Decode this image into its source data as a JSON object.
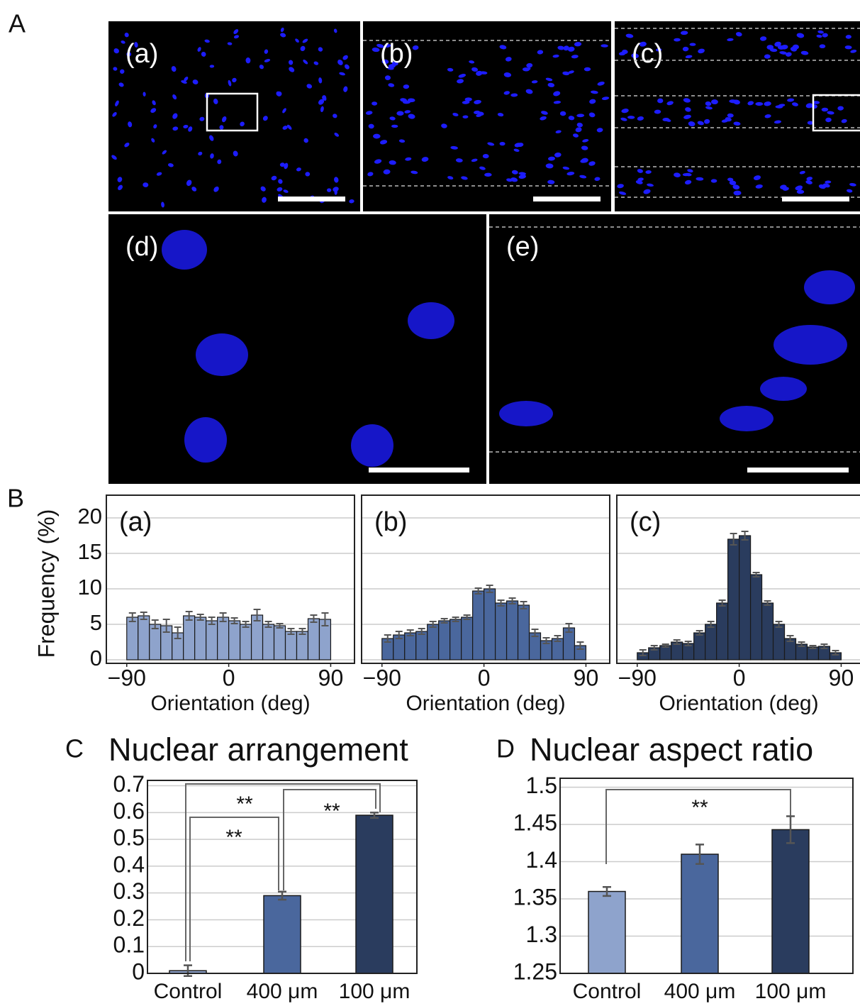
{
  "panel_labels": [
    "A",
    "B",
    "C",
    "D"
  ],
  "image_labels": [
    "(a)",
    "(b)",
    "(c)",
    "(d)",
    "(e)"
  ],
  "chart_data": [
    {
      "type": "histogram",
      "label": "(a)",
      "ylabel": "Frequency (%)",
      "xlabel": "Orientation (deg)",
      "color": "#8ea3cc",
      "bins": [
        -90,
        -80,
        -70,
        -60,
        -50,
        -40,
        -30,
        -20,
        -10,
        0,
        10,
        20,
        30,
        40,
        50,
        60,
        70,
        80,
        90
      ],
      "values": [
        6.0,
        6.2,
        5.0,
        4.8,
        3.8,
        6.2,
        6.0,
        5.5,
        6.0,
        5.5,
        5.0,
        6.3,
        5.0,
        4.8,
        4.0,
        4.0,
        5.8,
        5.7
      ],
      "errors": [
        0.6,
        0.5,
        0.6,
        0.9,
        0.8,
        0.6,
        0.4,
        0.5,
        0.6,
        0.4,
        0.4,
        0.8,
        0.4,
        0.3,
        0.4,
        0.4,
        0.5,
        0.9
      ],
      "xlim": [
        -108,
        111
      ],
      "ylim": [
        -0.5,
        23.2
      ],
      "xticks": [
        {
          "value": -90,
          "label": "−90"
        },
        0,
        90
      ],
      "yticks": [
        0,
        5,
        10,
        15,
        20
      ],
      "show_ytick_labels": true,
      "grid": true
    },
    {
      "type": "histogram",
      "label": "(b)",
      "xlabel": "Orientation (deg)",
      "color": "#4a679d",
      "bins": [
        -90,
        -80,
        -70,
        -60,
        -50,
        -40,
        -30,
        -20,
        -10,
        0,
        10,
        20,
        30,
        40,
        50,
        60,
        70,
        80,
        90
      ],
      "values": [
        3.0,
        3.5,
        3.8,
        4.0,
        5.0,
        5.5,
        5.7,
        6.0,
        9.7,
        10.0,
        8.0,
        8.3,
        7.7,
        3.8,
        2.7,
        3.0,
        4.5,
        2.0
      ],
      "errors": [
        0.5,
        0.5,
        0.4,
        0.4,
        0.4,
        0.3,
        0.3,
        0.3,
        0.4,
        0.5,
        0.4,
        0.4,
        0.5,
        0.5,
        0.4,
        0.4,
        0.6,
        0.5
      ],
      "xlim": [
        -108,
        111
      ],
      "ylim": [
        -0.5,
        23.2
      ],
      "xticks": [
        {
          "value": -90,
          "label": "−90"
        },
        0,
        90
      ],
      "yticks": [
        0,
        5,
        10,
        15,
        20
      ],
      "show_ytick_labels": false,
      "grid": true
    },
    {
      "type": "histogram",
      "label": "(c)",
      "xlabel": "Orientation (deg)",
      "color": "#2a3c5e",
      "bins": [
        -90,
        -80,
        -70,
        -60,
        -50,
        -40,
        -30,
        -20,
        -10,
        0,
        10,
        20,
        30,
        40,
        50,
        60,
        70,
        80,
        90
      ],
      "values": [
        1.0,
        1.7,
        2.0,
        2.5,
        2.3,
        3.8,
        5.0,
        8.0,
        17.0,
        17.5,
        12.0,
        8.0,
        5.0,
        3.0,
        2.2,
        1.8,
        1.9,
        1.0
      ],
      "errors": [
        0.4,
        0.3,
        0.2,
        0.3,
        0.3,
        0.3,
        0.4,
        0.4,
        0.8,
        0.6,
        0.3,
        0.3,
        0.4,
        0.4,
        0.3,
        0.2,
        0.3,
        0.3
      ],
      "xlim": [
        -108,
        111
      ],
      "ylim": [
        -0.5,
        23.2
      ],
      "xticks": [
        {
          "value": -90,
          "label": "−90"
        },
        0,
        90
      ],
      "yticks": [
        0,
        5,
        10,
        15,
        20
      ],
      "show_ytick_labels": false,
      "grid": true
    },
    {
      "type": "bar",
      "title": "Nuclear arrangement",
      "categories": [
        "Control",
        "400 μm",
        "100 μm"
      ],
      "values": [
        0.01,
        0.29,
        0.59
      ],
      "errors": [
        0.02,
        0.015,
        0.01
      ],
      "colors": [
        "#8ea3cc",
        "#4a679d",
        "#2a3c5e"
      ],
      "ylim": [
        0,
        0.72
      ],
      "yticks": [
        0,
        0.1,
        0.2,
        0.3,
        0.4,
        0.5,
        0.6,
        0.7
      ],
      "grid": true,
      "annotations": [
        "**",
        "**",
        "**"
      ]
    },
    {
      "type": "bar",
      "title": "Nuclear aspect ratio",
      "categories": [
        "Control",
        "400 μm",
        "100 μm"
      ],
      "values": [
        1.36,
        1.41,
        1.443
      ],
      "errors": [
        0.006,
        0.013,
        0.018
      ],
      "colors": [
        "#8ea3cc",
        "#4a679d",
        "#2a3c5e"
      ],
      "ylim": [
        1.25,
        1.512
      ],
      "yticks": [
        1.25,
        1.3,
        1.35,
        1.4,
        1.45,
        1.5
      ],
      "grid": true,
      "annotations": [
        "**"
      ]
    }
  ]
}
